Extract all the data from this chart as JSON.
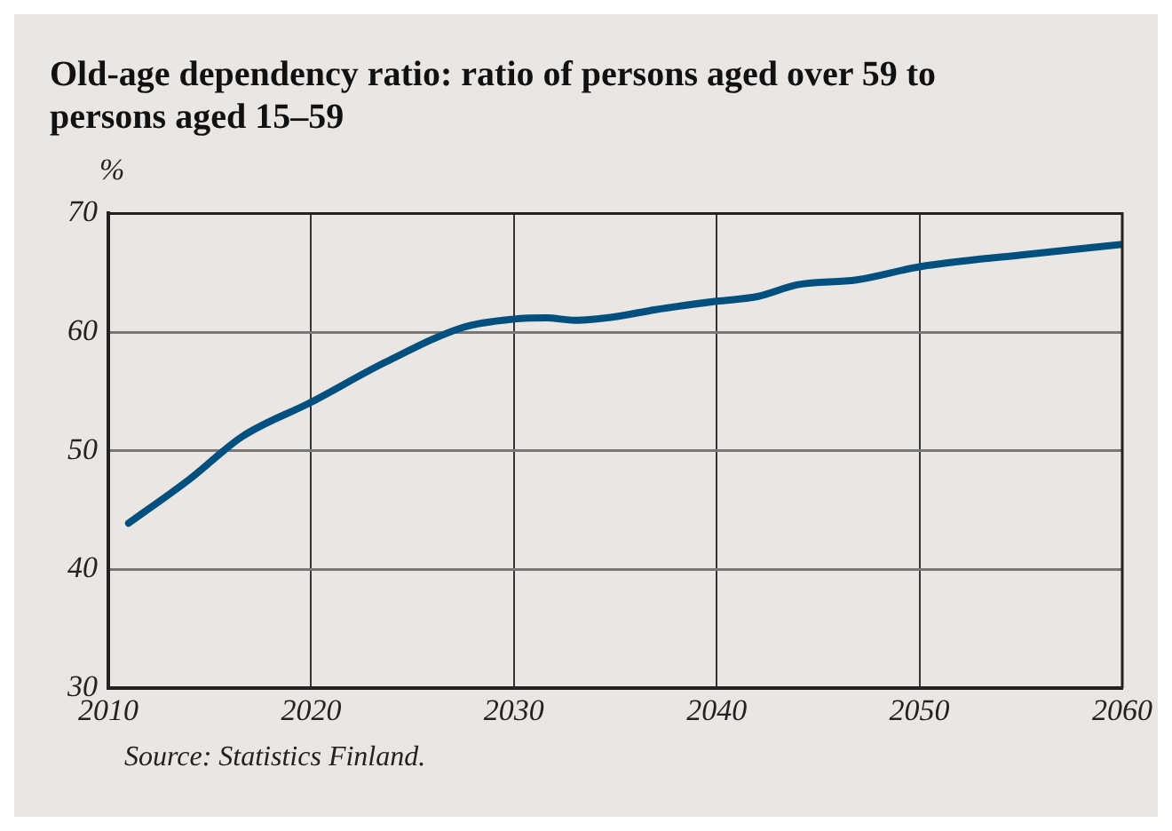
{
  "chart_data": {
    "type": "line",
    "title": "Old-age dependency ratio: ratio of persons aged over 59 to persons aged 15–59",
    "ylabel": "%",
    "x": [
      2011,
      2014,
      2016.6,
      2020,
      2023.7,
      2027.5,
      2030,
      2031.6,
      2033,
      2035,
      2037,
      2040,
      2042,
      2044,
      2046.9,
      2050,
      2055,
      2060
    ],
    "series": [
      {
        "color": "#00507f",
        "values": [
          43.9,
          47.6,
          51.2,
          54.1,
          57.5,
          60.4,
          61.1,
          61.2,
          61.0,
          61.3,
          61.9,
          62.6,
          63.0,
          64.0,
          64.4,
          65.5,
          66.5,
          67.4
        ]
      }
    ],
    "xlim": [
      2010,
      2060
    ],
    "xticks": [
      2010,
      2020,
      2030,
      2040,
      2050,
      2060
    ],
    "ylim": [
      30,
      70
    ],
    "yticks": [
      30,
      40,
      50,
      60,
      70
    ],
    "grid": true,
    "legend": false,
    "marker": "none",
    "line_style": "solid",
    "annotations": [
      "Source: Statistics Finland."
    ]
  }
}
